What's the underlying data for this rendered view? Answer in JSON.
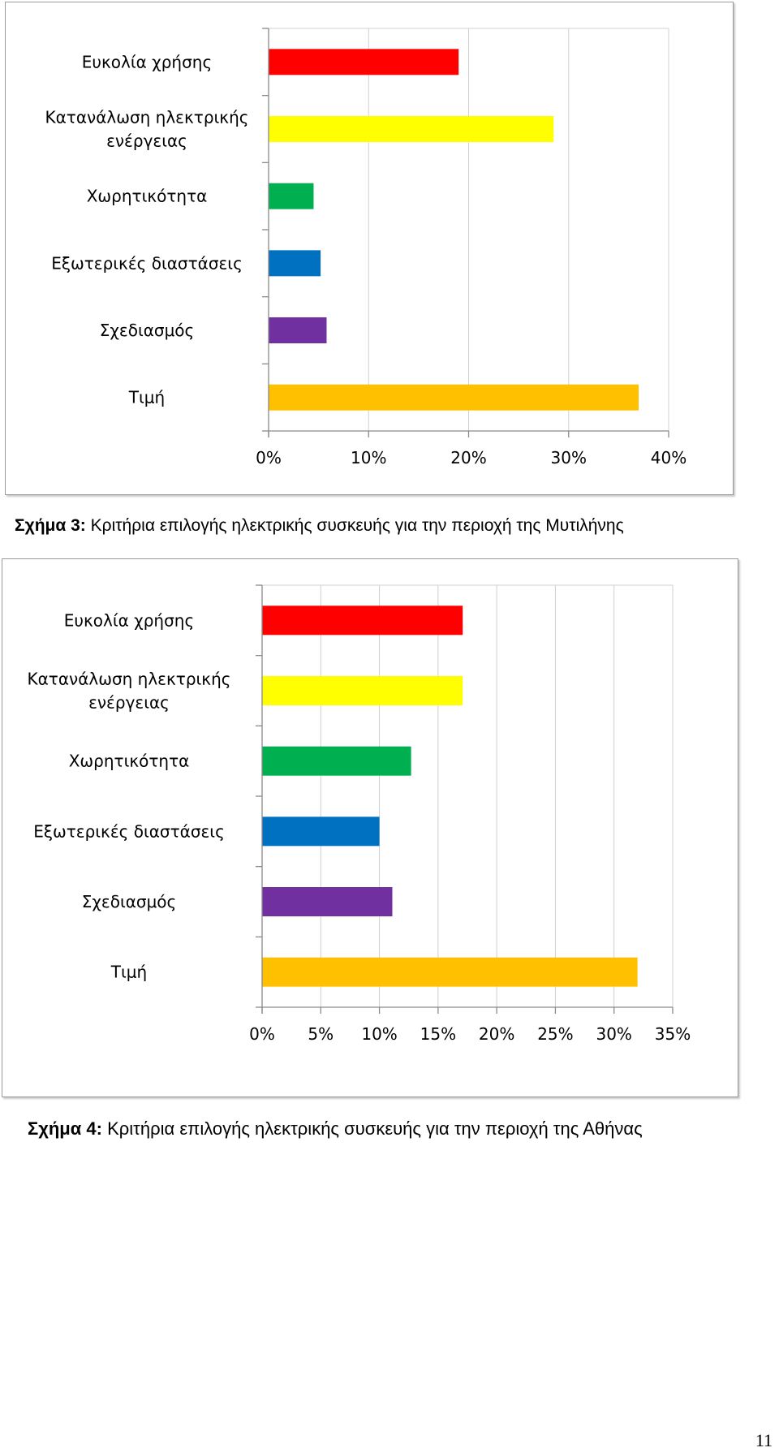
{
  "figures": [
    {
      "caption_label": "Σχήμα 3:",
      "caption_text": "Κριτήρια επιλογής ηλεκτρικής συσκευής για την περιοχή της Μυτιλήνης"
    },
    {
      "caption_label": "Σχήμα 4:",
      "caption_text": "Κριτήρια επιλογής ηλεκτρικής συσκευής για την περιοχή της Αθήνας"
    }
  ],
  "page_number": "11",
  "chart_data": [
    {
      "type": "bar",
      "orientation": "horizontal",
      "title": "",
      "xlabel": "",
      "ylabel": "",
      "categories": [
        [
          "Ευκολία χρήσης"
        ],
        [
          "Κατανάλωση ηλεκτρικής",
          "ενέργειας"
        ],
        [
          "Χωρητικότητα"
        ],
        [
          "Εξωτερικές διαστάσεις"
        ],
        [
          "Σχεδιασμός"
        ],
        [
          "Τιμή"
        ]
      ],
      "values": [
        19,
        28.5,
        4.5,
        5.2,
        5.8,
        37
      ],
      "colors": [
        "#ff0000",
        "#ffff00",
        "#00b050",
        "#0070c0",
        "#7030a0",
        "#ffc000"
      ],
      "xlim": [
        0,
        40
      ],
      "xticks": [
        0,
        10,
        20,
        30,
        40
      ],
      "tick_labels": [
        "0%",
        "10%",
        "20%",
        "30%",
        "40%"
      ],
      "grid": true,
      "legend": "none"
    },
    {
      "type": "bar",
      "orientation": "horizontal",
      "title": "",
      "xlabel": "",
      "ylabel": "",
      "categories": [
        [
          "Ευκολία χρήσης"
        ],
        [
          "Κατανάλωση ηλεκτρικής",
          "ενέργειας"
        ],
        [
          "Χωρητικότητα"
        ],
        [
          "Εξωτερικές διαστάσεις"
        ],
        [
          "Σχεδιασμός"
        ],
        [
          "Τιμή"
        ]
      ],
      "values": [
        17.1,
        17.1,
        12.7,
        10,
        11.1,
        32
      ],
      "colors": [
        "#ff0000",
        "#ffff00",
        "#00b050",
        "#0070c0",
        "#7030a0",
        "#ffc000"
      ],
      "xlim": [
        0,
        35
      ],
      "xticks": [
        0,
        5,
        10,
        15,
        20,
        25,
        30,
        35
      ],
      "tick_labels": [
        "0%",
        "5%",
        "10%",
        "15%",
        "20%",
        "25%",
        "30%",
        "35%"
      ],
      "grid": true,
      "legend": "none"
    }
  ]
}
